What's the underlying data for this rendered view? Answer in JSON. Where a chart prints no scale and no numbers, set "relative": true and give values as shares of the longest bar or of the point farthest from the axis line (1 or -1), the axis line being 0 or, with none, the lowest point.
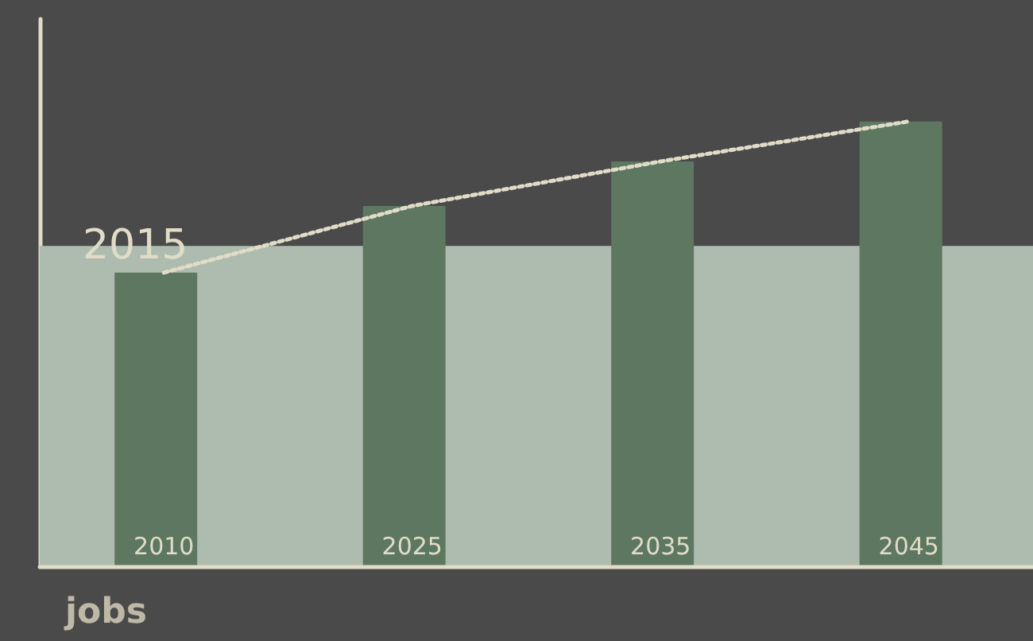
{
  "chart_data": {
    "type": "bar",
    "relative": true,
    "xlabel": "jobs",
    "categories": [
      "2010",
      "2025",
      "2035",
      "2045"
    ],
    "series": [
      {
        "color": "#5d7761",
        "values": [
          0.66,
          0.81,
          0.91,
          1
        ]
      },
      {
        "type": "line",
        "color": "#e0dcc8",
        "line_style": "dotted",
        "marker": "none",
        "values": [
          0.66,
          0.81,
          0.91,
          1
        ]
      }
    ],
    "bands": [
      {
        "axis": "y",
        "from": 0,
        "to": 0.72,
        "label": "2015",
        "color": "#aebcaf"
      }
    ],
    "grid": false
  }
}
